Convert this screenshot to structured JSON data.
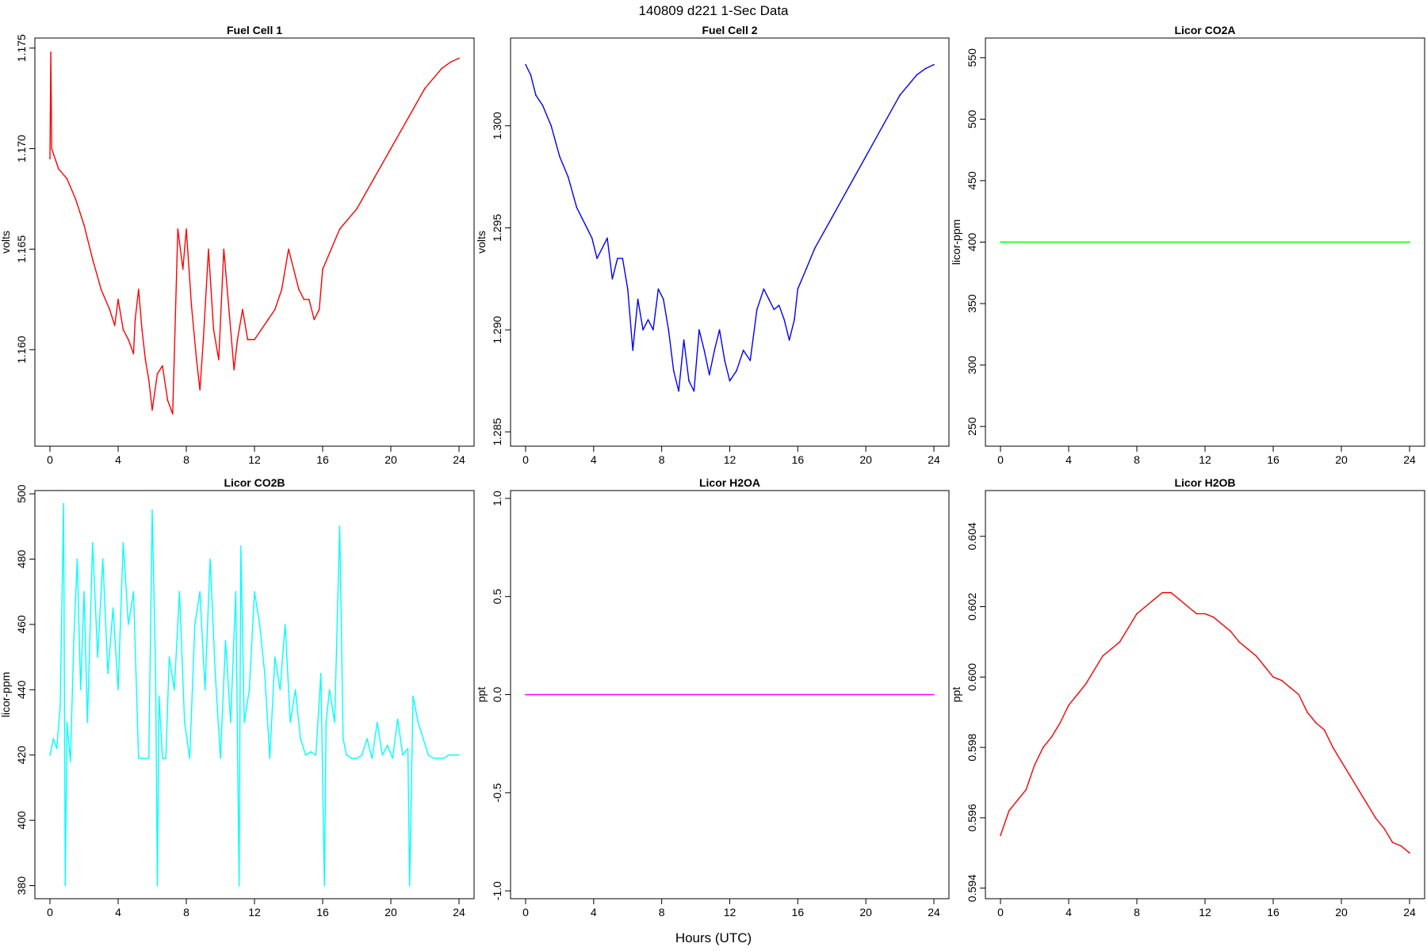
{
  "figure": {
    "title": "140809   d221   1-Sec Data",
    "xlabel": "Hours (UTC)"
  },
  "chart_data": [
    {
      "type": "line",
      "title": "Fuel Cell 1",
      "ylabel": "volts",
      "color": "#ff0000",
      "xlim": [
        0,
        24
      ],
      "ylim": [
        1.1552,
        1.1755
      ],
      "xticks": [
        0,
        4,
        8,
        12,
        16,
        20,
        24
      ],
      "yticks": [
        "1.160",
        "1.165",
        "1.170",
        "1.175"
      ],
      "x": [
        0,
        0.05,
        0.1,
        0.5,
        1,
        1.5,
        2,
        2.5,
        3,
        3.5,
        3.8,
        4,
        4.3,
        4.6,
        4.9,
        5,
        5.2,
        5.4,
        5.6,
        5.8,
        6,
        6.3,
        6.6,
        6.9,
        7.2,
        7.5,
        7.8,
        8,
        8.3,
        8.6,
        8.8,
        9,
        9.3,
        9.6,
        9.9,
        10.2,
        10.5,
        10.8,
        11,
        11.3,
        11.6,
        12,
        12.4,
        12.8,
        13.2,
        13.6,
        14,
        14.3,
        14.6,
        14.9,
        15.2,
        15.5,
        15.8,
        16,
        16.5,
        17,
        18,
        19,
        20,
        21,
        22,
        23,
        23.5,
        24
      ],
      "y": [
        1.1695,
        1.1748,
        1.17,
        1.169,
        1.1685,
        1.1675,
        1.1662,
        1.1645,
        1.163,
        1.162,
        1.1612,
        1.1625,
        1.161,
        1.1605,
        1.1598,
        1.1615,
        1.163,
        1.161,
        1.1595,
        1.1585,
        1.157,
        1.1588,
        1.1592,
        1.1575,
        1.1568,
        1.166,
        1.164,
        1.166,
        1.1622,
        1.1595,
        1.158,
        1.1605,
        1.165,
        1.161,
        1.1595,
        1.165,
        1.162,
        1.159,
        1.1605,
        1.162,
        1.1605,
        1.1605,
        1.161,
        1.1615,
        1.162,
        1.163,
        1.165,
        1.164,
        1.163,
        1.1625,
        1.1625,
        1.1615,
        1.162,
        1.164,
        1.165,
        1.166,
        1.167,
        1.1685,
        1.17,
        1.1715,
        1.173,
        1.174,
        1.1743,
        1.1745
      ]
    },
    {
      "type": "line",
      "title": "Fuel Cell 2",
      "ylabel": "volts",
      "color": "#0000ff",
      "xlim": [
        0,
        24
      ],
      "ylim": [
        1.2843,
        1.3043
      ],
      "xticks": [
        0,
        4,
        8,
        12,
        16,
        20,
        24
      ],
      "yticks": [
        "1.285",
        "1.290",
        "1.295",
        "1.300"
      ],
      "x": [
        0,
        0.3,
        0.6,
        1,
        1.5,
        2,
        2.5,
        3,
        3.3,
        3.6,
        3.9,
        4.2,
        4.5,
        4.8,
        5.1,
        5.4,
        5.7,
        6,
        6.3,
        6.6,
        6.9,
        7.2,
        7.5,
        7.8,
        8.1,
        8.4,
        8.7,
        9,
        9.3,
        9.6,
        9.9,
        10.2,
        10.5,
        10.8,
        11.1,
        11.4,
        11.7,
        12,
        12.4,
        12.8,
        13.2,
        13.6,
        14,
        14.3,
        14.6,
        14.9,
        15.2,
        15.5,
        15.8,
        16,
        16.5,
        17,
        18,
        19,
        20,
        21,
        22,
        23,
        23.5,
        24
      ],
      "y": [
        1.303,
        1.3025,
        1.3015,
        1.301,
        1.3,
        1.2985,
        1.2975,
        1.296,
        1.2955,
        1.295,
        1.2945,
        1.2935,
        1.294,
        1.2945,
        1.2925,
        1.2935,
        1.2935,
        1.292,
        1.289,
        1.2915,
        1.29,
        1.2905,
        1.29,
        1.292,
        1.2915,
        1.29,
        1.288,
        1.287,
        1.2895,
        1.2875,
        1.287,
        1.29,
        1.289,
        1.2878,
        1.289,
        1.29,
        1.2885,
        1.2875,
        1.288,
        1.289,
        1.2885,
        1.291,
        1.292,
        1.2915,
        1.291,
        1.2912,
        1.2905,
        1.2895,
        1.2905,
        1.292,
        1.293,
        1.294,
        1.2955,
        1.297,
        1.2985,
        1.3,
        1.3015,
        1.3025,
        1.3028,
        1.303
      ]
    },
    {
      "type": "line",
      "title": "Licor CO2A",
      "ylabel": "licor-ppm",
      "color": "#00ff00",
      "xlim": [
        0,
        24
      ],
      "ylim": [
        234,
        566
      ],
      "xticks": [
        0,
        4,
        8,
        12,
        16,
        20,
        24
      ],
      "yticks": [
        "250",
        "300",
        "350",
        "400",
        "450",
        "500",
        "550"
      ],
      "x": [
        0,
        24
      ],
      "y": [
        400,
        400
      ]
    },
    {
      "type": "line",
      "title": "Licor CO2B",
      "ylabel": "licor-ppm",
      "color": "#00ffff",
      "xlim": [
        0,
        24
      ],
      "ylim": [
        376,
        501
      ],
      "xticks": [
        0,
        4,
        8,
        12,
        16,
        20,
        24
      ],
      "yticks": [
        "380",
        "400",
        "420",
        "440",
        "460",
        "480",
        "500"
      ],
      "x": [
        0,
        0.2,
        0.4,
        0.6,
        0.8,
        0.9,
        1.0,
        1.2,
        1.4,
        1.6,
        1.8,
        2.0,
        2.2,
        2.5,
        2.8,
        3.1,
        3.4,
        3.7,
        4.0,
        4.3,
        4.6,
        4.9,
        5.2,
        5.5,
        5.8,
        6.0,
        6.2,
        6.3,
        6.4,
        6.6,
        6.8,
        7.0,
        7.3,
        7.6,
        7.9,
        8.2,
        8.5,
        8.8,
        9.1,
        9.4,
        9.7,
        10.0,
        10.3,
        10.6,
        10.9,
        11.1,
        11.2,
        11.4,
        11.7,
        12.0,
        12.3,
        12.6,
        12.9,
        13.2,
        13.5,
        13.8,
        14.1,
        14.4,
        14.7,
        15.0,
        15.3,
        15.6,
        15.9,
        16.1,
        16.2,
        16.4,
        16.7,
        17.0,
        17.2,
        17.4,
        17.7,
        18.0,
        18.3,
        18.6,
        18.9,
        19.2,
        19.5,
        19.8,
        20.1,
        20.4,
        20.7,
        21.0,
        21.1,
        21.3,
        21.6,
        21.9,
        22.2,
        22.5,
        22.8,
        23.1,
        23.4,
        23.7,
        24
      ],
      "y": [
        420,
        425,
        422,
        435,
        497,
        380,
        430,
        418,
        455,
        480,
        440,
        470,
        430,
        485,
        450,
        480,
        445,
        465,
        440,
        485,
        460,
        470,
        419,
        419,
        419,
        495,
        445,
        380,
        438,
        419,
        419,
        450,
        440,
        470,
        430,
        419,
        460,
        470,
        440,
        480,
        445,
        419,
        455,
        430,
        470,
        380,
        484,
        430,
        440,
        470,
        460,
        445,
        419,
        450,
        440,
        460,
        430,
        440,
        425,
        420,
        421,
        420,
        445,
        380,
        430,
        440,
        430,
        490,
        425,
        420,
        419,
        419,
        420,
        425,
        419,
        430,
        420,
        423,
        419,
        431,
        420,
        422,
        380,
        438,
        430,
        425,
        420,
        419,
        419,
        419,
        420,
        420,
        420
      ]
    },
    {
      "type": "line",
      "title": "Licor H2OA",
      "ylabel": "ppt",
      "color": "#ff00ff",
      "xlim": [
        0,
        24
      ],
      "ylim": [
        -1.04,
        1.04
      ],
      "xticks": [
        0,
        4,
        8,
        12,
        16,
        20,
        24
      ],
      "yticks": [
        "-1.0",
        "-0.5",
        "0.0",
        "0.5",
        "1.0"
      ],
      "x": [
        0,
        24
      ],
      "y": [
        0,
        0
      ]
    },
    {
      "type": "line",
      "title": "Licor H2OB",
      "ylabel": "ppt",
      "color": "#ff0000",
      "xlim": [
        0,
        24
      ],
      "ylim": [
        0.5937,
        0.6053
      ],
      "xticks": [
        0,
        4,
        8,
        12,
        16,
        20,
        24
      ],
      "yticks": [
        "0.594",
        "0.596",
        "0.598",
        "0.600",
        "0.602",
        "0.604"
      ],
      "x": [
        0,
        0.5,
        1,
        1.5,
        2,
        2.5,
        3,
        3.5,
        4,
        4.5,
        5,
        5.5,
        6,
        6.5,
        7,
        7.5,
        8,
        8.5,
        9,
        9.5,
        10,
        10.5,
        11,
        11.5,
        12,
        12.5,
        13,
        13.5,
        14,
        14.5,
        15,
        15.5,
        16,
        16.5,
        17,
        17.5,
        18,
        18.5,
        19,
        19.5,
        20,
        20.5,
        21,
        21.5,
        22,
        22.5,
        23,
        23.5,
        24
      ],
      "y": [
        0.5955,
        0.5962,
        0.5965,
        0.5968,
        0.5975,
        0.598,
        0.5983,
        0.5987,
        0.5992,
        0.5995,
        0.5998,
        0.6002,
        0.6006,
        0.6008,
        0.601,
        0.6014,
        0.6018,
        0.602,
        0.6022,
        0.6024,
        0.6024,
        0.6022,
        0.602,
        0.6018,
        0.6018,
        0.6017,
        0.6015,
        0.6013,
        0.601,
        0.6008,
        0.6006,
        0.6003,
        0.6,
        0.5999,
        0.5997,
        0.5995,
        0.599,
        0.5987,
        0.5985,
        0.598,
        0.5976,
        0.5972,
        0.5968,
        0.5964,
        0.596,
        0.5957,
        0.5953,
        0.5952,
        0.595
      ]
    }
  ]
}
